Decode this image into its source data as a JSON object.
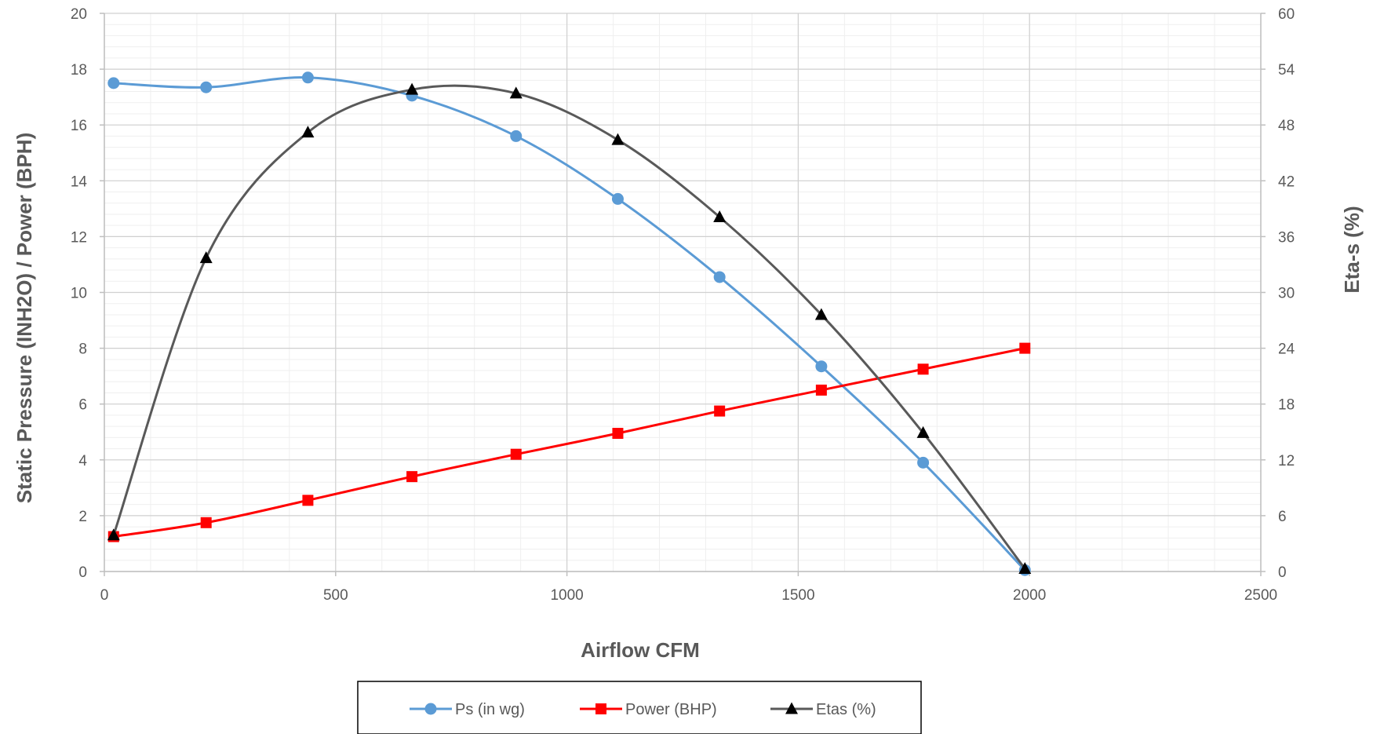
{
  "chart_data": {
    "type": "line",
    "xlabel": "Airflow CFM",
    "ylabel_left": "Static Pressure (INH2O) / Power (BPH)",
    "ylabel_right": "Eta-s (%)",
    "xlim": [
      0,
      2500
    ],
    "ylim_left": [
      0,
      20
    ],
    "ylim_right": [
      0,
      60
    ],
    "x_ticks": [
      0,
      500,
      1000,
      1500,
      2000,
      2500
    ],
    "y_left_ticks": [
      0,
      2,
      4,
      6,
      8,
      10,
      12,
      14,
      16,
      18,
      20
    ],
    "y_right_ticks": [
      0,
      6,
      12,
      18,
      24,
      30,
      36,
      42,
      48,
      54,
      60
    ],
    "grid": true,
    "smooth": true,
    "legend_position": "bottom",
    "series": [
      {
        "name": "Ps (in wg)",
        "axis": "left",
        "color": "#5B9BD5",
        "marker": "circle",
        "x": [
          20,
          220,
          440,
          665,
          890,
          1110,
          1330,
          1550,
          1770,
          1990
        ],
        "values": [
          17.5,
          17.35,
          17.7,
          17.05,
          15.6,
          13.35,
          10.55,
          7.35,
          3.9,
          0.05
        ]
      },
      {
        "name": "Power (BHP)",
        "axis": "left",
        "color": "#FF0000",
        "marker": "square",
        "x": [
          20,
          220,
          440,
          665,
          890,
          1110,
          1330,
          1550,
          1770,
          1990
        ],
        "values": [
          1.25,
          1.75,
          2.55,
          3.4,
          4.2,
          4.95,
          5.75,
          6.5,
          7.25,
          8.0
        ]
      },
      {
        "name": "Etas (%)",
        "axis": "right",
        "color": "#595959",
        "marker": "triangle",
        "x": [
          20,
          220,
          440,
          665,
          890,
          1110,
          1330,
          1550,
          1770,
          1990
        ],
        "values": [
          3.9,
          33.7,
          47.2,
          51.8,
          51.4,
          46.4,
          38.1,
          27.6,
          14.9,
          0.3
        ]
      }
    ]
  }
}
